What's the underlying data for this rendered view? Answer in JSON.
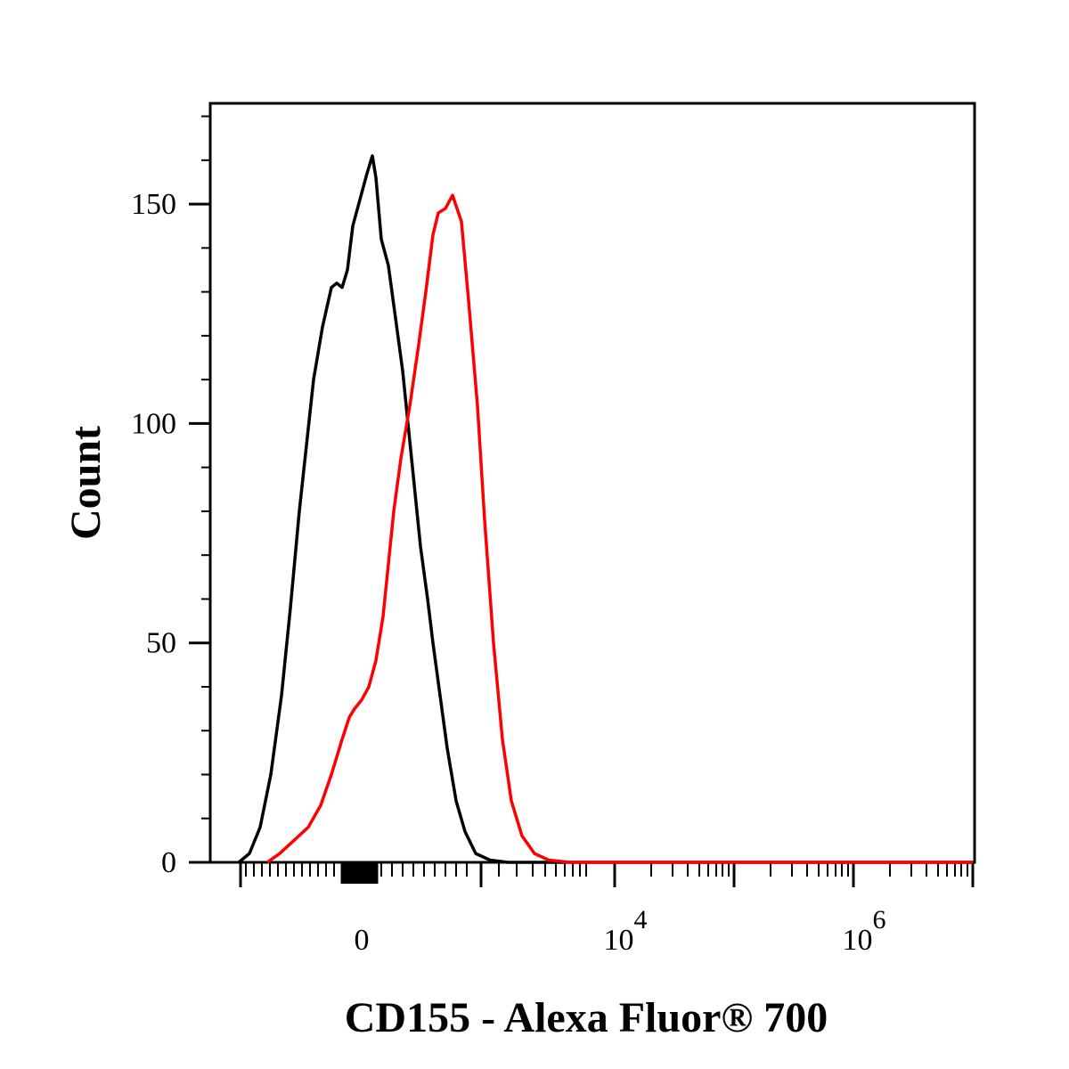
{
  "chart_data": {
    "type": "line",
    "xlabel": "CD155 - Alexa Fluor® 700",
    "ylabel": "Count",
    "ylim": [
      0,
      172
    ],
    "xscale": "biexponential",
    "y_ticks": [
      0,
      50,
      100,
      150
    ],
    "y_tick_labels": [
      "0",
      "50",
      "100",
      "150"
    ],
    "x_tick_labels": [
      {
        "base": "0",
        "exp": ""
      },
      {
        "base": "10",
        "exp": "4"
      },
      {
        "base": "10",
        "exp": "6"
      }
    ],
    "grid": false,
    "series": [
      {
        "color": "#000000",
        "points": [
          [
            268,
            0
          ],
          [
            280,
            2
          ],
          [
            292,
            8
          ],
          [
            304,
            20
          ],
          [
            316,
            38
          ],
          [
            326,
            58
          ],
          [
            336,
            80
          ],
          [
            344,
            95
          ],
          [
            352,
            110
          ],
          [
            362,
            122
          ],
          [
            372,
            131
          ],
          [
            378,
            132
          ],
          [
            384,
            131
          ],
          [
            390,
            135
          ],
          [
            396,
            145
          ],
          [
            404,
            151
          ],
          [
            412,
            157
          ],
          [
            418,
            161
          ],
          [
            422,
            156
          ],
          [
            428,
            142
          ],
          [
            436,
            136
          ],
          [
            444,
            124
          ],
          [
            452,
            112
          ],
          [
            458,
            100
          ],
          [
            464,
            88
          ],
          [
            472,
            72
          ],
          [
            480,
            60
          ],
          [
            486,
            50
          ],
          [
            494,
            38
          ],
          [
            502,
            26
          ],
          [
            512,
            14
          ],
          [
            522,
            7
          ],
          [
            534,
            2
          ],
          [
            550,
            0.5
          ],
          [
            570,
            0
          ],
          [
            1092,
            0
          ]
        ]
      },
      {
        "color": "#ff0000",
        "points": [
          [
            300,
            0
          ],
          [
            314,
            2
          ],
          [
            330,
            5
          ],
          [
            346,
            8
          ],
          [
            360,
            13
          ],
          [
            372,
            20
          ],
          [
            384,
            28
          ],
          [
            392,
            33
          ],
          [
            398,
            35
          ],
          [
            406,
            37
          ],
          [
            414,
            40
          ],
          [
            422,
            46
          ],
          [
            430,
            56
          ],
          [
            436,
            68
          ],
          [
            442,
            80
          ],
          [
            450,
            92
          ],
          [
            460,
            104
          ],
          [
            470,
            118
          ],
          [
            478,
            130
          ],
          [
            486,
            143
          ],
          [
            492,
            148
          ],
          [
            500,
            149
          ],
          [
            508,
            152
          ],
          [
            518,
            146
          ],
          [
            526,
            128
          ],
          [
            536,
            104
          ],
          [
            544,
            78
          ],
          [
            554,
            50
          ],
          [
            564,
            28
          ],
          [
            574,
            14
          ],
          [
            586,
            6
          ],
          [
            600,
            2
          ],
          [
            616,
            0.5
          ],
          [
            640,
            0
          ],
          [
            1092,
            0
          ]
        ]
      }
    ]
  }
}
